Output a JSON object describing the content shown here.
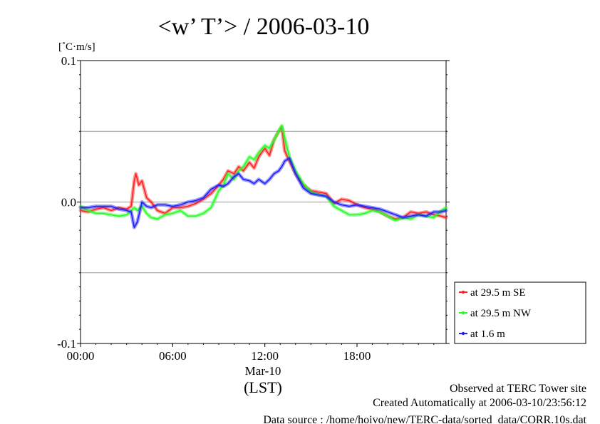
{
  "chart_data": {
    "type": "line",
    "title": "<w’ T’> / 2006-03-10",
    "ylabel": "[˚C·m/s]",
    "ylim": [
      -0.1,
      0.1
    ],
    "yticks": [
      {
        "value": 0.1,
        "label": "0.1"
      },
      {
        "value": 0.0,
        "label": "0.0"
      },
      {
        "value": -0.1,
        "label": "-0.1"
      }
    ],
    "grid_y": [
      0.05,
      0.0,
      -0.05
    ],
    "xlim_hours": [
      0,
      23.8
    ],
    "xticks": [
      {
        "hour": 0,
        "label": "00:00"
      },
      {
        "hour": 6,
        "label": "06:00"
      },
      {
        "hour": 12,
        "label": "12:00"
      },
      {
        "hour": 18,
        "label": "18:00"
      }
    ],
    "xsub_label": "Mar-10",
    "xlabel": "(LST)",
    "legend_position": "right",
    "series": [
      {
        "name": "at 29.5 m SE",
        "color": "#ff2020",
        "x": [
          0,
          0.5,
          1,
          1.5,
          2,
          2.5,
          3,
          3.3,
          3.5,
          3.6,
          3.8,
          4,
          4.3,
          4.6,
          5,
          5.5,
          6,
          6.5,
          7,
          7.5,
          8,
          8.5,
          9,
          9.3,
          9.6,
          10,
          10.3,
          10.6,
          11,
          11.3,
          11.6,
          12,
          12.3,
          12.6,
          12.9,
          13.1,
          13.3,
          13.6,
          14,
          14.5,
          15,
          15.5,
          16,
          16.5,
          17,
          17.5,
          18,
          18.5,
          19,
          19.5,
          20,
          20.5,
          21,
          21.5,
          22,
          22.5,
          23,
          23.5,
          23.8
        ],
        "y": [
          -0.006,
          -0.007,
          -0.005,
          -0.004,
          -0.006,
          -0.004,
          -0.005,
          -0.003,
          0.015,
          0.02,
          0.012,
          0.015,
          0.003,
          0.0,
          -0.006,
          -0.008,
          -0.004,
          -0.004,
          -0.003,
          -0.001,
          0.002,
          0.006,
          0.012,
          0.016,
          0.022,
          0.02,
          0.025,
          0.022,
          0.028,
          0.024,
          0.032,
          0.038,
          0.033,
          0.044,
          0.05,
          0.053,
          0.036,
          0.029,
          0.02,
          0.012,
          0.008,
          0.007,
          0.006,
          -0.001,
          0.002,
          0.001,
          -0.002,
          -0.004,
          -0.005,
          -0.007,
          -0.01,
          -0.012,
          -0.011,
          -0.007,
          -0.008,
          -0.007,
          -0.009,
          -0.01,
          -0.011
        ]
      },
      {
        "name": "at 29.5 m NW",
        "color": "#20ff20",
        "x": [
          0,
          0.5,
          1,
          1.5,
          2,
          2.5,
          3,
          3.3,
          3.5,
          3.7,
          4,
          4.3,
          4.6,
          5,
          5.5,
          6,
          6.5,
          7,
          7.5,
          8,
          8.5,
          9,
          9.3,
          9.6,
          10,
          10.3,
          10.6,
          11,
          11.3,
          11.6,
          12,
          12.3,
          12.6,
          12.9,
          13.1,
          13.3,
          13.6,
          14,
          14.5,
          15,
          15.5,
          16,
          16.5,
          17,
          17.5,
          18,
          18.5,
          19,
          19.5,
          20,
          20.5,
          21,
          21.5,
          22,
          22.5,
          23,
          23.5,
          23.8
        ],
        "y": [
          -0.003,
          -0.006,
          -0.008,
          -0.008,
          -0.009,
          -0.01,
          -0.009,
          -0.006,
          -0.004,
          -0.006,
          -0.003,
          -0.008,
          -0.011,
          -0.012,
          -0.009,
          -0.008,
          -0.006,
          -0.01,
          -0.01,
          -0.008,
          -0.004,
          0.008,
          0.012,
          0.02,
          0.016,
          0.022,
          0.025,
          0.032,
          0.03,
          0.035,
          0.04,
          0.038,
          0.044,
          0.05,
          0.054,
          0.045,
          0.032,
          0.022,
          0.013,
          0.007,
          0.005,
          0.004,
          -0.003,
          -0.006,
          -0.009,
          -0.009,
          -0.008,
          -0.006,
          -0.007,
          -0.01,
          -0.013,
          -0.011,
          -0.012,
          -0.009,
          -0.01,
          -0.011,
          -0.006,
          -0.004
        ]
      },
      {
        "name": "at 1.6 m",
        "color": "#2020ff",
        "x": [
          0,
          0.5,
          1,
          1.5,
          2,
          2.5,
          3,
          3.3,
          3.5,
          3.7,
          4,
          4.3,
          4.6,
          5,
          5.5,
          6,
          6.5,
          7,
          7.5,
          8,
          8.5,
          9,
          9.3,
          9.6,
          10,
          10.3,
          10.6,
          11,
          11.3,
          11.6,
          12,
          12.3,
          12.6,
          12.9,
          13.1,
          13.3,
          13.6,
          14,
          14.5,
          15,
          15.5,
          16,
          16.5,
          17,
          17.5,
          18,
          18.5,
          19,
          19.5,
          20,
          20.5,
          21,
          21.5,
          22,
          22.5,
          23,
          23.5,
          23.8
        ],
        "y": [
          -0.004,
          -0.004,
          -0.003,
          -0.003,
          -0.003,
          -0.005,
          -0.006,
          -0.007,
          -0.018,
          -0.014,
          0.0,
          -0.003,
          -0.004,
          -0.002,
          -0.002,
          -0.003,
          -0.002,
          0.0,
          0.001,
          0.003,
          0.009,
          0.012,
          0.011,
          0.013,
          0.018,
          0.02,
          0.016,
          0.015,
          0.013,
          0.016,
          0.013,
          0.016,
          0.02,
          0.022,
          0.025,
          0.029,
          0.031,
          0.02,
          0.01,
          0.006,
          0.005,
          0.004,
          0.0,
          -0.002,
          -0.003,
          -0.002,
          -0.003,
          -0.004,
          -0.005,
          -0.007,
          -0.009,
          -0.011,
          -0.01,
          -0.009,
          -0.01,
          -0.007,
          -0.007,
          -0.006
        ]
      }
    ]
  },
  "footer": {
    "line1": "Observed at TERC Tower site",
    "line2": "Created Automatically at 2006-03-10/23:56:12",
    "line3": "Data source : /home/hoivo/new/TERC-data/sorted_data/CORR.10s.dat"
  }
}
